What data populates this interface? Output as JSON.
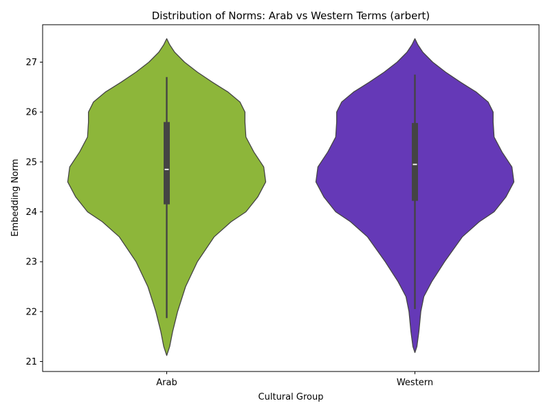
{
  "chart_data": {
    "type": "violin",
    "title": "Distribution of Norms: Arab vs Western Terms (arbert)",
    "xlabel": "Cultural Group",
    "ylabel": "Embedding Norm",
    "categories": [
      "Arab",
      "Western"
    ],
    "ylim": [
      20.8,
      27.75
    ],
    "yticks": [
      21,
      22,
      23,
      24,
      25,
      26,
      27
    ],
    "colors": [
      "#8db63a",
      "#6539b7"
    ],
    "grid": false,
    "legend": "none",
    "violins": [
      {
        "category": "Arab",
        "stats": {
          "min": 21.87,
          "q1": 24.15,
          "median": 24.85,
          "q3": 25.8,
          "max": 26.7
        },
        "kde_range": [
          21.12,
          27.47
        ],
        "density": [
          [
            21.12,
            0.0
          ],
          [
            21.3,
            0.03
          ],
          [
            21.6,
            0.06
          ],
          [
            22.0,
            0.11
          ],
          [
            22.5,
            0.19
          ],
          [
            23.0,
            0.31
          ],
          [
            23.5,
            0.48
          ],
          [
            23.8,
            0.65
          ],
          [
            24.0,
            0.8
          ],
          [
            24.3,
            0.92
          ],
          [
            24.6,
            1.0
          ],
          [
            24.9,
            0.98
          ],
          [
            25.2,
            0.88
          ],
          [
            25.5,
            0.8
          ],
          [
            25.8,
            0.79
          ],
          [
            26.0,
            0.79
          ],
          [
            26.2,
            0.74
          ],
          [
            26.4,
            0.62
          ],
          [
            26.6,
            0.46
          ],
          [
            26.8,
            0.31
          ],
          [
            27.0,
            0.18
          ],
          [
            27.2,
            0.08
          ],
          [
            27.35,
            0.03
          ],
          [
            27.47,
            0.0
          ]
        ]
      },
      {
        "category": "Western",
        "stats": {
          "min": 22.05,
          "q1": 24.22,
          "median": 24.95,
          "q3": 25.78,
          "max": 26.75
        },
        "kde_range": [
          21.18,
          27.47
        ],
        "density": [
          [
            21.18,
            0.0
          ],
          [
            21.3,
            0.02
          ],
          [
            21.6,
            0.04
          ],
          [
            22.0,
            0.06
          ],
          [
            22.3,
            0.09
          ],
          [
            22.6,
            0.17
          ],
          [
            23.0,
            0.3
          ],
          [
            23.5,
            0.48
          ],
          [
            23.8,
            0.65
          ],
          [
            24.0,
            0.8
          ],
          [
            24.3,
            0.92
          ],
          [
            24.6,
            1.0
          ],
          [
            24.9,
            0.98
          ],
          [
            25.2,
            0.88
          ],
          [
            25.5,
            0.8
          ],
          [
            25.8,
            0.79
          ],
          [
            26.0,
            0.79
          ],
          [
            26.2,
            0.74
          ],
          [
            26.4,
            0.62
          ],
          [
            26.6,
            0.46
          ],
          [
            26.8,
            0.31
          ],
          [
            27.0,
            0.18
          ],
          [
            27.2,
            0.08
          ],
          [
            27.35,
            0.03
          ],
          [
            27.47,
            0.0
          ]
        ]
      }
    ]
  }
}
